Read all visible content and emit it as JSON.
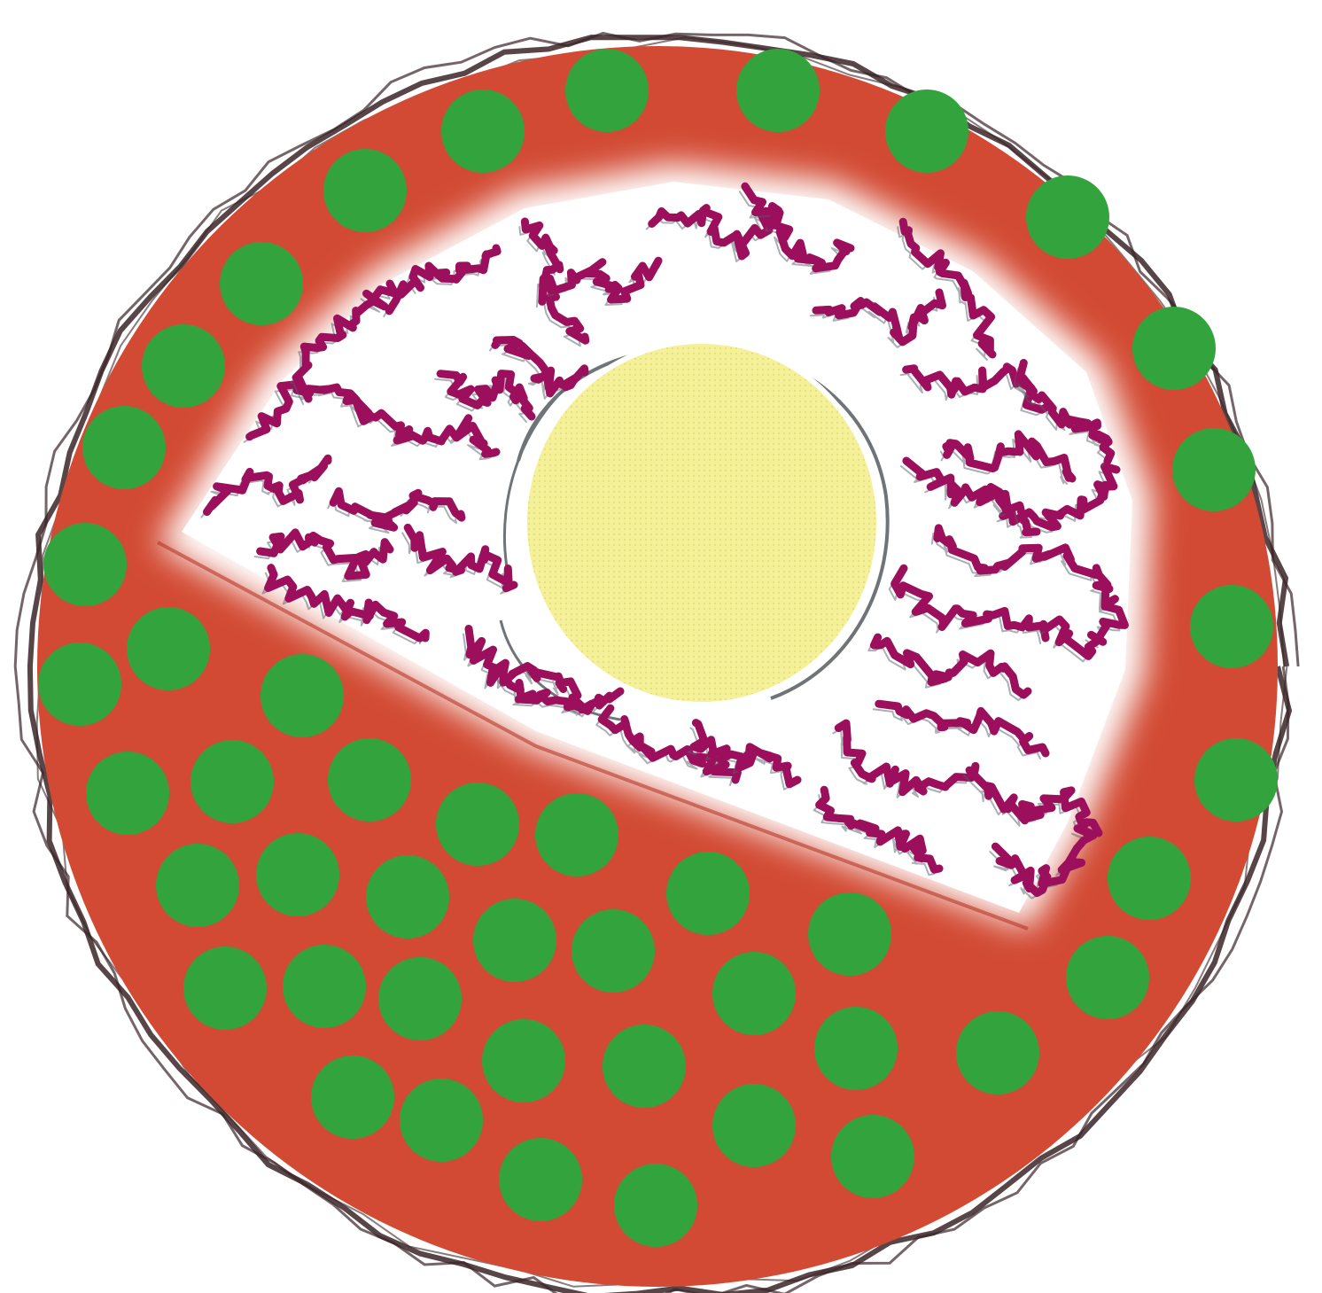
{
  "diagram": {
    "colors": {
      "cell_body": "#d24a33",
      "cell_border": "#3a2428",
      "granule": "#33a43d",
      "clear_zone": "#ffffff",
      "filament": "#9c0f5c",
      "nucleus": "#f2ee8a",
      "nucleus_outline": "#6f7478"
    }
  }
}
